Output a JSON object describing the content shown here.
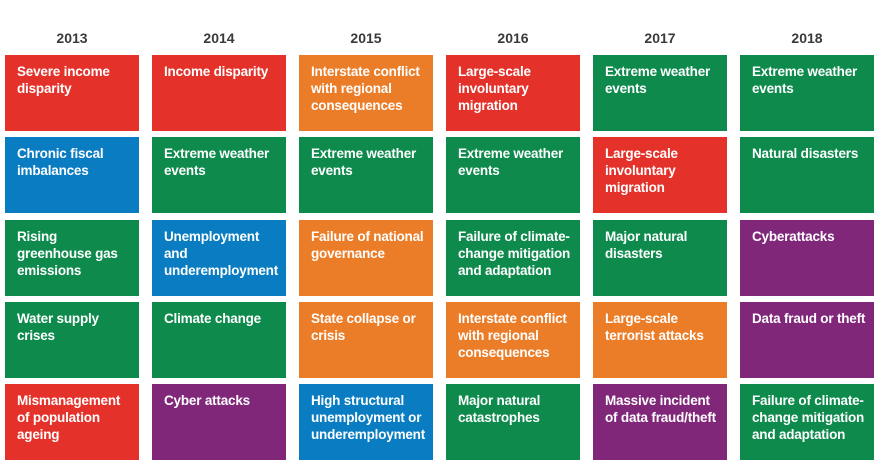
{
  "colors": {
    "red": "#e4322b",
    "blue": "#0a7dc2",
    "green": "#0d8a4c",
    "orange": "#ec7d28",
    "purple": "#80277a"
  },
  "columns": [
    {
      "year": "2013",
      "risks": [
        {
          "label": "Severe income disparity",
          "color": "red"
        },
        {
          "label": "Chronic fiscal imbalances",
          "color": "blue"
        },
        {
          "label": "Rising greenhouse gas emissions",
          "color": "green"
        },
        {
          "label": "Water supply crises",
          "color": "green"
        },
        {
          "label": "Mismanagement of population ageing",
          "color": "red"
        }
      ]
    },
    {
      "year": "2014",
      "risks": [
        {
          "label": "Income disparity",
          "color": "red"
        },
        {
          "label": "Extreme weather events",
          "color": "green"
        },
        {
          "label": "Unemployment and underemployment",
          "color": "blue"
        },
        {
          "label": "Climate change",
          "color": "green"
        },
        {
          "label": "Cyber attacks",
          "color": "purple"
        }
      ]
    },
    {
      "year": "2015",
      "risks": [
        {
          "label": "Interstate conflict with regional consequences",
          "color": "orange"
        },
        {
          "label": "Extreme weather events",
          "color": "green"
        },
        {
          "label": "Failure of national governance",
          "color": "orange"
        },
        {
          "label": "State collapse or crisis",
          "color": "orange"
        },
        {
          "label": "High structural unemployment or underemployment",
          "color": "blue"
        }
      ]
    },
    {
      "year": "2016",
      "risks": [
        {
          "label": "Large-scale involuntary migration",
          "color": "red"
        },
        {
          "label": "Extreme weather events",
          "color": "green"
        },
        {
          "label": "Failure of climate-change mitigation and adaptation",
          "color": "green"
        },
        {
          "label": "Interstate conflict with regional consequences",
          "color": "orange"
        },
        {
          "label": "Major natural catastrophes",
          "color": "green"
        }
      ]
    },
    {
      "year": "2017",
      "risks": [
        {
          "label": "Extreme weather events",
          "color": "green"
        },
        {
          "label": "Large-scale involuntary migration",
          "color": "red"
        },
        {
          "label": "Major natural disasters",
          "color": "green"
        },
        {
          "label": "Large-scale terrorist attacks",
          "color": "orange"
        },
        {
          "label": "Massive incident of data fraud/theft",
          "color": "purple"
        }
      ]
    },
    {
      "year": "2018",
      "risks": [
        {
          "label": "Extreme weather events",
          "color": "green"
        },
        {
          "label": "Natural disasters",
          "color": "green"
        },
        {
          "label": "Cyberattacks",
          "color": "purple"
        },
        {
          "label": "Data fraud or theft",
          "color": "purple"
        },
        {
          "label": "Failure of climate-change mitigation and adaptation",
          "color": "green"
        }
      ]
    }
  ]
}
